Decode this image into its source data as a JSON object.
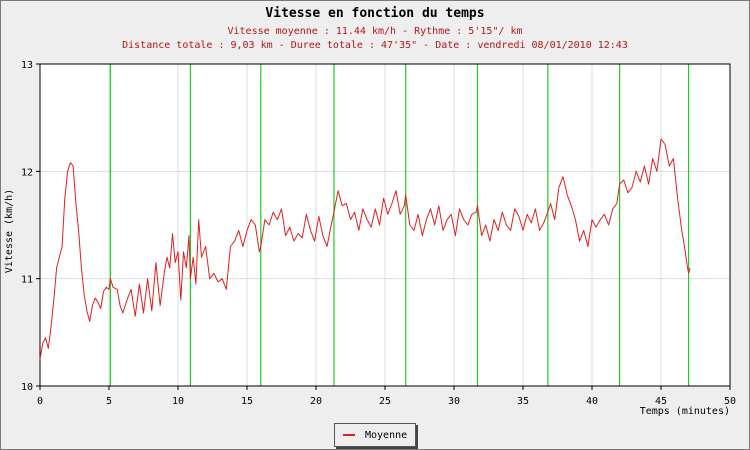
{
  "chart_data": {
    "type": "line",
    "title": "Vitesse en fonction du temps",
    "subtitle_1": "Vitesse moyenne : 11.44 km/h - Rythme : 5'15\"/ km",
    "subtitle_2": "Distance totale : 9,03 km - Duree totale : 47'35\" - Date : vendredi 08/01/2010 12:43",
    "xlabel": "Temps (minutes)",
    "ylabel": "Vitesse (km/h)",
    "xlim": [
      0,
      50
    ],
    "ylim": [
      10,
      13
    ],
    "xticks": [
      0,
      5,
      10,
      15,
      20,
      25,
      30,
      35,
      40,
      45,
      50
    ],
    "yticks": [
      10,
      11,
      12,
      13
    ],
    "grid": true,
    "legend_position": "bottom-center",
    "kilometer_marks": [
      5.1,
      10.9,
      16.0,
      21.3,
      26.5,
      31.7,
      36.8,
      42.0,
      47.0
    ],
    "series": [
      {
        "name": "Moyenne",
        "color": "#e02020",
        "x": [
          0,
          0.2,
          0.4,
          0.6,
          0.8,
          1.0,
          1.2,
          1.4,
          1.6,
          1.8,
          2.0,
          2.2,
          2.4,
          2.6,
          2.8,
          3.0,
          3.2,
          3.4,
          3.6,
          3.8,
          4.0,
          4.2,
          4.4,
          4.6,
          4.8,
          5.0,
          5.1,
          5.3,
          5.6,
          5.8,
          6.0,
          6.3,
          6.6,
          6.9,
          7.2,
          7.5,
          7.8,
          8.1,
          8.4,
          8.7,
          9.0,
          9.2,
          9.4,
          9.6,
          9.8,
          10.0,
          10.2,
          10.4,
          10.6,
          10.8,
          10.9,
          11.1,
          11.3,
          11.5,
          11.7,
          12.0,
          12.3,
          12.6,
          12.9,
          13.2,
          13.5,
          13.8,
          14.1,
          14.4,
          14.7,
          15.0,
          15.3,
          15.6,
          15.9,
          16.0,
          16.3,
          16.6,
          16.9,
          17.2,
          17.5,
          17.8,
          18.1,
          18.4,
          18.7,
          19.0,
          19.3,
          19.6,
          19.9,
          20.2,
          20.5,
          20.8,
          21.1,
          21.3,
          21.6,
          21.9,
          22.2,
          22.5,
          22.8,
          23.1,
          23.4,
          23.7,
          24.0,
          24.3,
          24.6,
          24.9,
          25.2,
          25.5,
          25.8,
          26.1,
          26.4,
          26.5,
          26.8,
          27.1,
          27.4,
          27.7,
          28.0,
          28.3,
          28.6,
          28.9,
          29.2,
          29.5,
          29.8,
          30.1,
          30.4,
          30.7,
          31.0,
          31.3,
          31.6,
          31.7,
          32.0,
          32.3,
          32.6,
          32.9,
          33.2,
          33.5,
          33.8,
          34.1,
          34.4,
          34.7,
          35.0,
          35.3,
          35.6,
          35.9,
          36.2,
          36.5,
          36.8,
          37.0,
          37.3,
          37.6,
          37.9,
          38.2,
          38.5,
          38.8,
          39.1,
          39.4,
          39.7,
          40.0,
          40.3,
          40.6,
          40.9,
          41.2,
          41.5,
          41.8,
          42.0,
          42.3,
          42.6,
          42.9,
          43.2,
          43.5,
          43.8,
          44.1,
          44.4,
          44.7,
          45.0,
          45.3,
          45.6,
          45.9,
          46.2,
          46.5,
          46.7,
          46.9,
          47.0,
          47.1
        ],
        "y": [
          10.25,
          10.4,
          10.45,
          10.35,
          10.55,
          10.8,
          11.1,
          11.2,
          11.3,
          11.75,
          12.0,
          12.08,
          12.05,
          11.7,
          11.45,
          11.1,
          10.85,
          10.7,
          10.6,
          10.75,
          10.82,
          10.78,
          10.72,
          10.88,
          10.92,
          10.9,
          11.0,
          10.92,
          10.9,
          10.75,
          10.68,
          10.8,
          10.9,
          10.65,
          10.95,
          10.68,
          11.0,
          10.7,
          11.15,
          10.75,
          11.05,
          11.2,
          11.1,
          11.42,
          11.15,
          11.25,
          10.8,
          11.25,
          11.1,
          11.4,
          11.0,
          11.2,
          10.95,
          11.55,
          11.2,
          11.3,
          11.0,
          11.05,
          10.97,
          11.0,
          10.9,
          11.3,
          11.35,
          11.45,
          11.3,
          11.45,
          11.55,
          11.5,
          11.25,
          11.3,
          11.55,
          11.5,
          11.62,
          11.55,
          11.65,
          11.4,
          11.48,
          11.35,
          11.42,
          11.38,
          11.6,
          11.45,
          11.35,
          11.58,
          11.4,
          11.3,
          11.5,
          11.62,
          11.82,
          11.68,
          11.7,
          11.55,
          11.62,
          11.45,
          11.65,
          11.55,
          11.48,
          11.65,
          11.5,
          11.75,
          11.6,
          11.7,
          11.82,
          11.6,
          11.68,
          11.78,
          11.5,
          11.45,
          11.6,
          11.4,
          11.55,
          11.65,
          11.5,
          11.68,
          11.45,
          11.55,
          11.6,
          11.4,
          11.65,
          11.55,
          11.5,
          11.6,
          11.62,
          11.68,
          11.4,
          11.5,
          11.35,
          11.55,
          11.45,
          11.62,
          11.5,
          11.45,
          11.65,
          11.58,
          11.45,
          11.6,
          11.52,
          11.65,
          11.45,
          11.52,
          11.62,
          11.7,
          11.55,
          11.85,
          11.95,
          11.78,
          11.68,
          11.55,
          11.35,
          11.45,
          11.3,
          11.55,
          11.48,
          11.55,
          11.6,
          11.5,
          11.65,
          11.7,
          11.88,
          11.92,
          11.8,
          11.85,
          12.0,
          11.9,
          12.05,
          11.88,
          12.12,
          12.0,
          12.3,
          12.25,
          12.05,
          12.12,
          11.75,
          11.45,
          11.3,
          11.12,
          11.05,
          11.1
        ]
      }
    ]
  }
}
